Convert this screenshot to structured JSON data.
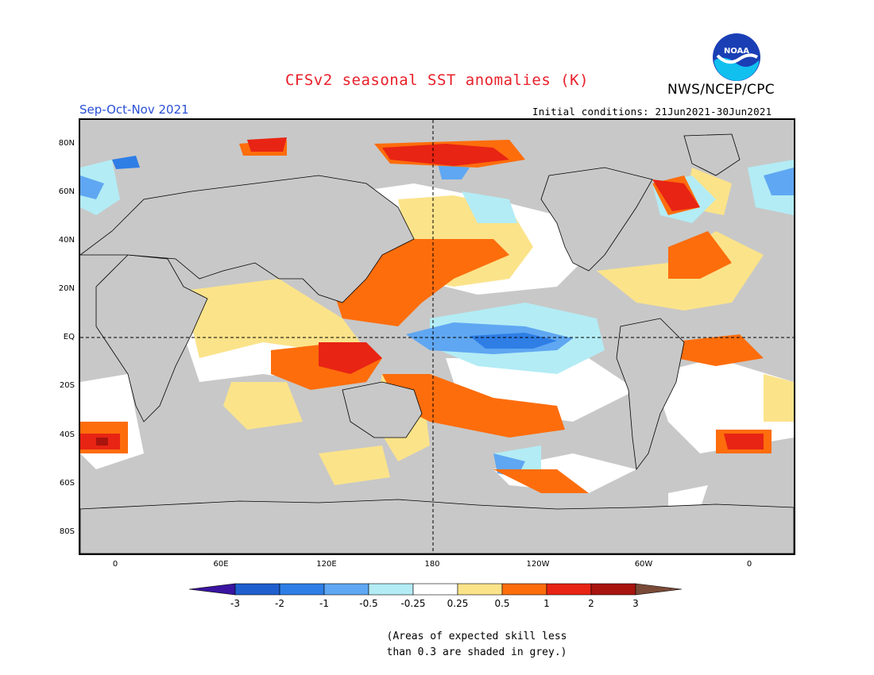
{
  "header": {
    "title": "CFSv2 seasonal SST anomalies (K)",
    "agency": "NWS/NCEP/CPC",
    "logo_text": "NOAA",
    "season": "Sep-Oct-Nov 2021",
    "initial_conditions": "Initial conditions: 21Jun2021-30Jun2021"
  },
  "map": {
    "projection": "Plate Carree, centered 180",
    "land_color": "#c8c8c8",
    "dashed_reference_lines": [
      "EQ",
      "180"
    ]
  },
  "axes": {
    "lat_labels": [
      "80N",
      "60N",
      "40N",
      "20N",
      "EQ",
      "20S",
      "40S",
      "60S",
      "80S"
    ],
    "lon_labels": [
      "0",
      "60E",
      "120E",
      "180",
      "120W",
      "60W",
      "0"
    ]
  },
  "colorbar": {
    "tick_labels": [
      "-3",
      "-2",
      "-1",
      "-0.5",
      "-0.25",
      "0.25",
      "0.5",
      "1",
      "2",
      "3"
    ],
    "colors": [
      "#3a14a0",
      "#1f5fce",
      "#2e7ee6",
      "#5fa7f2",
      "#b3ecf5",
      "#ffffff",
      "#fbe38a",
      "#fd6d0c",
      "#e82414",
      "#a8140e",
      "#7a4a38"
    ]
  },
  "note": {
    "line1": "(Areas of expected skill less",
    "line2": "than 0.3 are shaded in grey.)"
  }
}
